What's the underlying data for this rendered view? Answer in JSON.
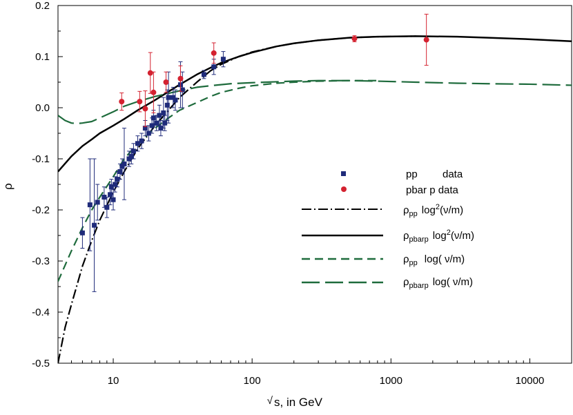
{
  "chart_data": {
    "type": "scatter",
    "xlabel": "s, in GeV",
    "xlabel_prefix": "√",
    "ylabel": "ρ",
    "x_scale": "log",
    "xlim": [
      4,
      20000
    ],
    "ylim": [
      -0.5,
      0.2
    ],
    "x_ticks": [
      10,
      100,
      1000,
      10000
    ],
    "x_tick_labels": [
      "10",
      "100",
      "1000",
      "10000"
    ],
    "y_ticks": [
      -0.5,
      -0.4,
      -0.3,
      -0.2,
      -0.1,
      0.0,
      0.1,
      0.2
    ],
    "y_tick_labels": [
      "-0.5",
      "-0.4",
      "-0.3",
      "-0.2",
      "-0.1",
      "0.0",
      "0.1",
      "0.2"
    ],
    "grid": false,
    "legend_placement": "center-right",
    "series": [
      {
        "name": "pp data",
        "legend_parts": [
          "pp",
          "data"
        ],
        "kind": "points",
        "marker": "square",
        "color": "#1f2b7a",
        "points": [
          {
            "x": 6.0,
            "y": -0.245,
            "err": 0.03
          },
          {
            "x": 6.8,
            "y": -0.19,
            "err": 0.09
          },
          {
            "x": 7.3,
            "y": -0.23,
            "err": 0.13
          },
          {
            "x": 7.7,
            "y": -0.185,
            "err": 0.035
          },
          {
            "x": 8.6,
            "y": -0.175,
            "err": 0.02
          },
          {
            "x": 9.0,
            "y": -0.195,
            "err": 0.02
          },
          {
            "x": 9.5,
            "y": -0.17,
            "err": 0.02
          },
          {
            "x": 9.7,
            "y": -0.155,
            "err": 0.015
          },
          {
            "x": 10.0,
            "y": -0.18,
            "err": 0.02
          },
          {
            "x": 10.3,
            "y": -0.15,
            "err": 0.015
          },
          {
            "x": 10.7,
            "y": -0.14,
            "err": 0.015
          },
          {
            "x": 11.2,
            "y": -0.125,
            "err": 0.015
          },
          {
            "x": 11.6,
            "y": -0.115,
            "err": 0.015
          },
          {
            "x": 12.0,
            "y": -0.11,
            "err": 0.07
          },
          {
            "x": 13.0,
            "y": -0.1,
            "err": 0.015
          },
          {
            "x": 13.5,
            "y": -0.095,
            "err": 0.015
          },
          {
            "x": 14.0,
            "y": -0.085,
            "err": 0.015
          },
          {
            "x": 15.0,
            "y": -0.07,
            "err": 0.015
          },
          {
            "x": 16.0,
            "y": -0.065,
            "err": 0.015
          },
          {
            "x": 17.0,
            "y": -0.04,
            "err": 0.015
          },
          {
            "x": 18.0,
            "y": -0.05,
            "err": 0.015
          },
          {
            "x": 19.0,
            "y": -0.035,
            "err": 0.015
          },
          {
            "x": 19.5,
            "y": -0.02,
            "err": 0.015
          },
          {
            "x": 20.5,
            "y": -0.03,
            "err": 0.015
          },
          {
            "x": 21.5,
            "y": -0.015,
            "err": 0.02
          },
          {
            "x": 22.0,
            "y": -0.04,
            "err": 0.015
          },
          {
            "x": 23.0,
            "y": -0.01,
            "err": 0.03
          },
          {
            "x": 23.5,
            "y": -0.03,
            "err": 0.015
          },
          {
            "x": 24.5,
            "y": 0.005,
            "err": 0.03
          },
          {
            "x": 25.0,
            "y": 0.02,
            "err": 0.05
          },
          {
            "x": 27.0,
            "y": 0.02,
            "err": 0.02
          },
          {
            "x": 28.0,
            "y": 0.015,
            "err": 0.02
          },
          {
            "x": 30.5,
            "y": 0.045,
            "err": 0.045
          },
          {
            "x": 31.5,
            "y": 0.035,
            "err": 0.035
          },
          {
            "x": 45.0,
            "y": 0.065,
            "err": 0.008
          },
          {
            "x": 53.0,
            "y": 0.08,
            "err": 0.015
          },
          {
            "x": 62.0,
            "y": 0.095,
            "err": 0.015
          }
        ]
      },
      {
        "name": "pbar p data",
        "kind": "points",
        "marker": "circle",
        "color": "#d42230",
        "points": [
          {
            "x": 11.5,
            "y": 0.012,
            "err": 0.017
          },
          {
            "x": 15.5,
            "y": 0.012,
            "err": 0.02
          },
          {
            "x": 17.0,
            "y": -0.002,
            "err": 0.035
          },
          {
            "x": 18.5,
            "y": 0.068,
            "err": 0.04
          },
          {
            "x": 19.5,
            "y": 0.03,
            "err": 0.04
          },
          {
            "x": 24.0,
            "y": 0.05,
            "err": 0.02
          },
          {
            "x": 30.5,
            "y": 0.057,
            "err": 0.025
          },
          {
            "x": 53.0,
            "y": 0.107,
            "err": 0.02
          },
          {
            "x": 546.0,
            "y": 0.135,
            "err": 0.006
          },
          {
            "x": 1800.0,
            "y": 0.133,
            "err": 0.05
          }
        ]
      },
      {
        "name": "ρpp log2(ν/m)",
        "legend_parts": [
          "ρ",
          "pp",
          "log",
          "2",
          "(ν/m)"
        ],
        "kind": "line",
        "dash": "dash-dot",
        "color": "#000000",
        "points": [
          [
            4,
            -0.5
          ],
          [
            4.5,
            -0.43
          ],
          [
            5,
            -0.385
          ],
          [
            6,
            -0.31
          ],
          [
            7,
            -0.26
          ],
          [
            8,
            -0.22
          ],
          [
            10,
            -0.165
          ],
          [
            12,
            -0.125
          ],
          [
            15,
            -0.08
          ],
          [
            20,
            -0.035
          ],
          [
            25,
            -0.005
          ],
          [
            30,
            0.02
          ],
          [
            40,
            0.05
          ],
          [
            50,
            0.072
          ],
          [
            60,
            0.085
          ],
          [
            80,
            0.1
          ],
          [
            100,
            0.109
          ],
          [
            150,
            0.12
          ],
          [
            200,
            0.126
          ],
          [
            300,
            0.132
          ],
          [
            500,
            0.137
          ],
          [
            800,
            0.139
          ],
          [
            1500,
            0.14
          ]
        ]
      },
      {
        "name": "ρpbarp log2(ν/m)",
        "legend_parts": [
          "ρ",
          "pbarp",
          "log",
          "2",
          "(ν/m)"
        ],
        "kind": "line",
        "dash": "solid",
        "color": "#000000",
        "points": [
          [
            4,
            -0.125
          ],
          [
            5,
            -0.095
          ],
          [
            6,
            -0.075
          ],
          [
            7,
            -0.062
          ],
          [
            8,
            -0.05
          ],
          [
            10,
            -0.035
          ],
          [
            12,
            -0.022
          ],
          [
            15,
            -0.005
          ],
          [
            20,
            0.015
          ],
          [
            30,
            0.045
          ],
          [
            40,
            0.065
          ],
          [
            50,
            0.078
          ],
          [
            60,
            0.088
          ],
          [
            80,
            0.1
          ],
          [
            100,
            0.108
          ],
          [
            150,
            0.12
          ],
          [
            200,
            0.126
          ],
          [
            300,
            0.132
          ],
          [
            500,
            0.137
          ],
          [
            800,
            0.139
          ],
          [
            1500,
            0.14
          ],
          [
            3000,
            0.139
          ],
          [
            5000,
            0.137
          ],
          [
            10000,
            0.134
          ],
          [
            20000,
            0.13
          ]
        ]
      },
      {
        "name": "ρpp log(ν/m)",
        "legend_parts": [
          "ρ",
          "pp",
          "log( ν/m)"
        ],
        "kind": "line",
        "dash": "dash",
        "color": "#1e6b3c",
        "points": [
          [
            4,
            -0.34
          ],
          [
            5,
            -0.28
          ],
          [
            6,
            -0.235
          ],
          [
            7,
            -0.2
          ],
          [
            8,
            -0.175
          ],
          [
            10,
            -0.135
          ],
          [
            12,
            -0.1
          ],
          [
            15,
            -0.07
          ],
          [
            20,
            -0.04
          ],
          [
            25,
            -0.02
          ],
          [
            30,
            -0.005
          ],
          [
            40,
            0.01
          ],
          [
            50,
            0.022
          ],
          [
            60,
            0.03
          ],
          [
            80,
            0.038
          ],
          [
            100,
            0.043
          ],
          [
            150,
            0.048
          ],
          [
            200,
            0.05
          ],
          [
            300,
            0.052
          ],
          [
            500,
            0.053
          ],
          [
            800,
            0.053
          ]
        ]
      },
      {
        "name": "ρpbarp log(ν/m)",
        "legend_parts": [
          "ρ",
          "pbarp",
          "log( ν/m)"
        ],
        "kind": "line",
        "dash": "long-dash",
        "color": "#1e6b3c",
        "points": [
          [
            4,
            -0.015
          ],
          [
            4.5,
            -0.025
          ],
          [
            5,
            -0.03
          ],
          [
            5.5,
            -0.031
          ],
          [
            6,
            -0.03
          ],
          [
            7,
            -0.027
          ],
          [
            8,
            -0.02
          ],
          [
            10,
            -0.008
          ],
          [
            12,
            0.003
          ],
          [
            15,
            0.012
          ],
          [
            20,
            0.022
          ],
          [
            30,
            0.033
          ],
          [
            40,
            0.04
          ],
          [
            50,
            0.043
          ],
          [
            70,
            0.047
          ],
          [
            100,
            0.049
          ],
          [
            200,
            0.052
          ],
          [
            300,
            0.053
          ],
          [
            500,
            0.053
          ],
          [
            800,
            0.052
          ],
          [
            1500,
            0.05
          ],
          [
            3000,
            0.048
          ],
          [
            5000,
            0.047
          ],
          [
            10000,
            0.046
          ],
          [
            20000,
            0.044
          ]
        ]
      }
    ]
  }
}
